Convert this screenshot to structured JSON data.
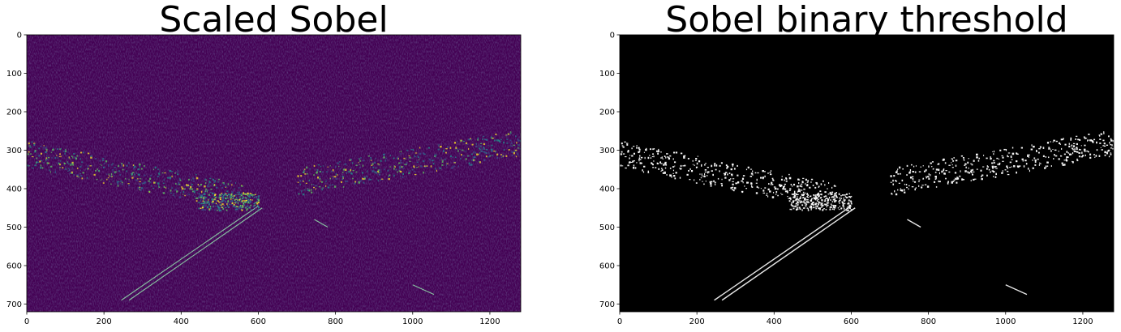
{
  "chart_data": [
    {
      "type": "heatmap",
      "title": "Scaled Sobel",
      "colormap": "viridis",
      "background_color": "#440154",
      "image_width": 1280,
      "image_height": 720,
      "xlim": [
        0,
        1280
      ],
      "ylim": [
        720,
        0
      ],
      "xticks": [
        0,
        200,
        400,
        600,
        800,
        1000,
        1200
      ],
      "yticks": [
        0,
        100,
        200,
        300,
        400,
        500,
        600,
        700
      ],
      "grid": false,
      "features": [
        {
          "name": "left lane line outer",
          "x1": 245,
          "y1": 690,
          "x2": 600,
          "y2": 445
        },
        {
          "name": "left lane line inner",
          "x1": 265,
          "y1": 690,
          "x2": 610,
          "y2": 450
        },
        {
          "name": "right dash near",
          "x1": 1000,
          "y1": 650,
          "x2": 1055,
          "y2": 675
        },
        {
          "name": "right dash far",
          "x1": 745,
          "y1": 480,
          "x2": 780,
          "y2": 500
        },
        {
          "name": "tree line left",
          "x1": 0,
          "y1": 330,
          "x2": 560,
          "y2": 440
        },
        {
          "name": "tree line right",
          "x1": 700,
          "y1": 400,
          "x2": 1280,
          "y2": 300
        },
        {
          "name": "bright texture cluster",
          "x": 520,
          "y": 440
        }
      ]
    },
    {
      "type": "heatmap",
      "title": "Sobel binary threshold",
      "colormap": "gray",
      "background_color": "#000000",
      "image_width": 1280,
      "image_height": 720,
      "xlim": [
        0,
        1280
      ],
      "ylim": [
        720,
        0
      ],
      "xticks": [
        0,
        200,
        400,
        600,
        800,
        1000,
        1200
      ],
      "yticks": [
        0,
        100,
        200,
        300,
        400,
        500,
        600,
        700
      ],
      "grid": false,
      "features": [
        {
          "name": "left lane line outer",
          "x1": 245,
          "y1": 690,
          "x2": 600,
          "y2": 445
        },
        {
          "name": "left lane line inner",
          "x1": 265,
          "y1": 690,
          "x2": 610,
          "y2": 450
        },
        {
          "name": "right dash near",
          "x1": 1000,
          "y1": 650,
          "x2": 1055,
          "y2": 675
        },
        {
          "name": "right dash far",
          "x1": 745,
          "y1": 480,
          "x2": 780,
          "y2": 500
        },
        {
          "name": "tree line left",
          "x1": 0,
          "y1": 330,
          "x2": 560,
          "y2": 440
        },
        {
          "name": "tree line right",
          "x1": 700,
          "y1": 400,
          "x2": 1280,
          "y2": 300
        },
        {
          "name": "bright texture cluster",
          "x": 520,
          "y": 440
        }
      ]
    }
  ]
}
